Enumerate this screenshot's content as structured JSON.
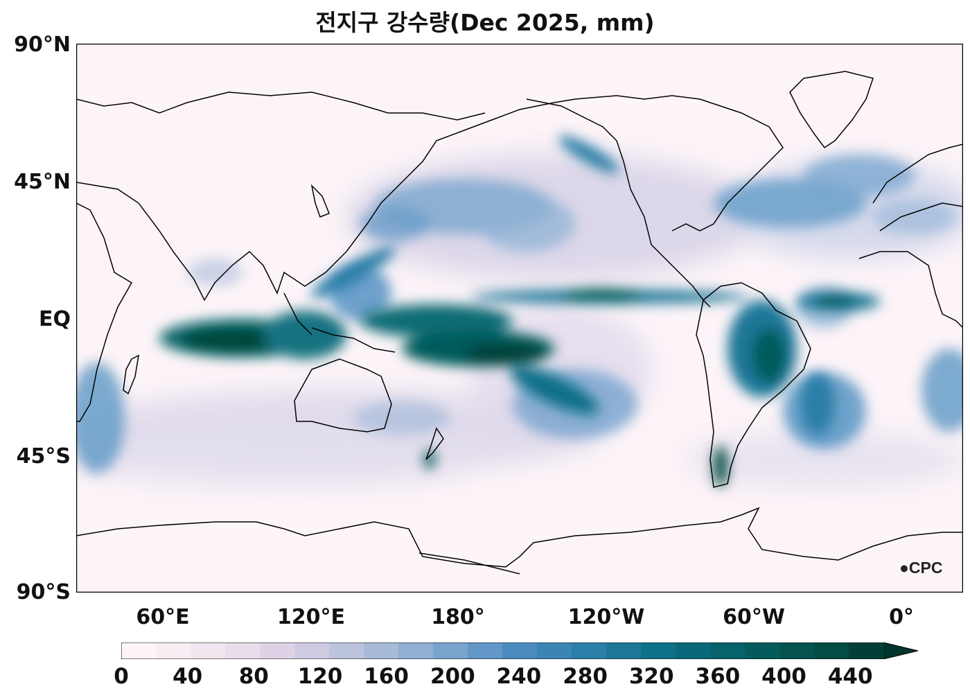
{
  "map": {
    "title": "전지구 강수량(Dec 2025, mm)",
    "lat_labels": [
      "90°N",
      "45°N",
      "EQ",
      "45°S",
      "90°S"
    ],
    "lon_labels": [
      "60°E",
      "120°E",
      "180°",
      "120°W",
      "60°W",
      "0°"
    ],
    "colorbar": {
      "ticks": [
        "0",
        "40",
        "80",
        "120",
        "160",
        "200",
        "240",
        "280",
        "320",
        "360",
        "400",
        "440"
      ],
      "colors": [
        "#fcf4f8",
        "#f7eef4",
        "#f1e6ef",
        "#e9ddea",
        "#ded3e6",
        "#cfcbe2",
        "#bcc3dd",
        "#a7bad8",
        "#91aed3",
        "#7aa3ce",
        "#6397c7",
        "#4b8cc0",
        "#3a85b4",
        "#2b7ea7",
        "#1d7798",
        "#0f7089",
        "#07697a",
        "#06626b",
        "#055b5c",
        "#04534f",
        "#034b43",
        "#023f37",
        "#01342c"
      ],
      "extend": "max"
    },
    "logo": "CPC",
    "precip_bands": [
      {
        "name": "itcz-pacific",
        "mm": 400
      },
      {
        "name": "indian-ocean",
        "mm": 440
      },
      {
        "name": "spcz",
        "mm": 420
      },
      {
        "name": "amazon",
        "mm": 380
      },
      {
        "name": "north-pacific-storm-track",
        "mm": 260
      },
      {
        "name": "north-atlantic-storm-track",
        "mm": 240
      },
      {
        "name": "atlantic-itcz",
        "mm": 360
      }
    ]
  }
}
